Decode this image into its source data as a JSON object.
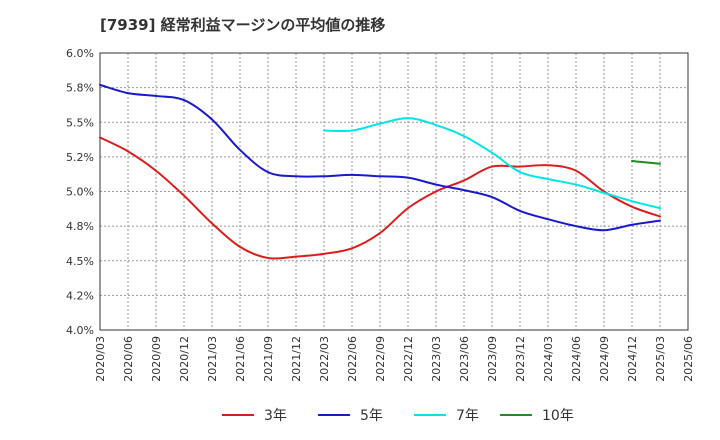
{
  "chart_data": {
    "type": "line",
    "title": "[7939]  経常利益マージンの平均値の推移",
    "xlabel": "",
    "ylabel": "",
    "y_unit": "%",
    "ylim": [
      4.0,
      6.0
    ],
    "yticks": [
      "4.0%",
      "4.2%",
      "4.5%",
      "4.8%",
      "5.0%",
      "5.2%",
      "5.5%",
      "5.8%",
      "6.0%"
    ],
    "xticks": [
      "2020/03",
      "2020/06",
      "2020/09",
      "2020/12",
      "2021/03",
      "2021/06",
      "2021/09",
      "2021/12",
      "2022/03",
      "2022/06",
      "2022/09",
      "2022/12",
      "2023/03",
      "2023/06",
      "2023/09",
      "2023/12",
      "2024/03",
      "2024/06",
      "2024/09",
      "2024/12",
      "2025/03",
      "2025/06"
    ],
    "grid": true,
    "legend_position": "bottom",
    "series": [
      {
        "name": "3年",
        "color": "#dd1c1c",
        "x": [
          "2020/03",
          "2020/06",
          "2020/09",
          "2020/12",
          "2021/03",
          "2021/06",
          "2021/09",
          "2021/12",
          "2022/03",
          "2022/06",
          "2022/09",
          "2022/12",
          "2023/03",
          "2023/06",
          "2023/09",
          "2023/12",
          "2024/03",
          "2024/06",
          "2024/09",
          "2024/12",
          "2025/03"
        ],
        "values": [
          5.39,
          5.29,
          5.15,
          4.97,
          4.77,
          4.6,
          4.52,
          4.53,
          4.55,
          4.59,
          4.7,
          4.88,
          5.0,
          5.08,
          5.18,
          5.18,
          5.19,
          5.15,
          5.0,
          4.89,
          4.82
        ]
      },
      {
        "name": "5年",
        "color": "#1a1acc",
        "x": [
          "2020/03",
          "2020/06",
          "2020/09",
          "2020/12",
          "2021/03",
          "2021/06",
          "2021/09",
          "2021/12",
          "2022/03",
          "2022/06",
          "2022/09",
          "2022/12",
          "2023/03",
          "2023/06",
          "2023/09",
          "2023/12",
          "2024/03",
          "2024/06",
          "2024/09",
          "2024/12",
          "2025/03"
        ],
        "values": [
          5.77,
          5.71,
          5.69,
          5.66,
          5.52,
          5.3,
          5.14,
          5.11,
          5.11,
          5.12,
          5.11,
          5.1,
          5.05,
          5.01,
          4.96,
          4.86,
          4.8,
          4.75,
          4.72,
          4.76,
          4.79
        ]
      },
      {
        "name": "7年",
        "color": "#00e5e5",
        "x": [
          "2022/03",
          "2022/06",
          "2022/09",
          "2022/12",
          "2023/03",
          "2023/06",
          "2023/09",
          "2023/12",
          "2024/03",
          "2024/06",
          "2024/09",
          "2024/12",
          "2025/03"
        ],
        "values": [
          5.44,
          5.44,
          5.49,
          5.53,
          5.48,
          5.4,
          5.28,
          5.14,
          5.09,
          5.05,
          4.99,
          4.93,
          4.88
        ]
      },
      {
        "name": "10年",
        "color": "#228b22",
        "x": [
          "2024/12",
          "2025/03"
        ],
        "values": [
          5.22,
          5.2
        ]
      }
    ]
  }
}
